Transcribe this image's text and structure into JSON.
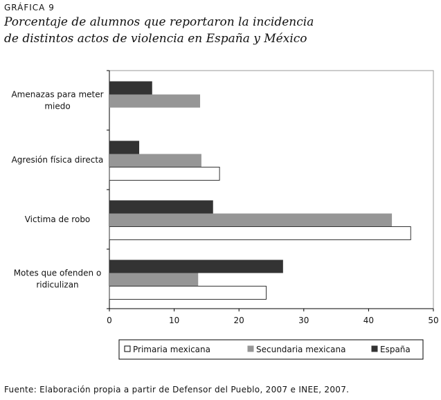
{
  "chart_data": {
    "type": "bar",
    "orientation": "horizontal",
    "label": "GRÁFICA 9",
    "title_lines": [
      "Porcentaje de alumnos que reportaron la incidencia",
      "de distintos actos de violencia en España y México"
    ],
    "categories": [
      [
        "Amenazas para meter",
        "miedo"
      ],
      [
        "Agresión física directa"
      ],
      [
        "Victima de robo"
      ],
      [
        "Motes que ofenden o",
        "ridiculizan"
      ]
    ],
    "series": [
      {
        "name": "España",
        "color": "#333333",
        "values": [
          6.6,
          4.6,
          16.0,
          26.8
        ]
      },
      {
        "name": "Secundaria mexicana",
        "color": "#969696",
        "values": [
          14.0,
          14.2,
          43.6,
          13.7
        ]
      },
      {
        "name": "Primaria mexicana",
        "color": "#ffffff",
        "values": [
          0,
          17.0,
          46.5,
          24.2
        ]
      }
    ],
    "legend_order": [
      "Primaria mexicana",
      "Secundaria mexicana",
      "España"
    ],
    "xlim": [
      0,
      50
    ],
    "xticks": [
      "0",
      "10",
      "20",
      "30",
      "40",
      "50"
    ],
    "grid": false,
    "legend_position": "bottom",
    "source": "Fuente: Elaboración propia a partir de Defensor del Pueblo, 2007 e INEE, 2007."
  }
}
